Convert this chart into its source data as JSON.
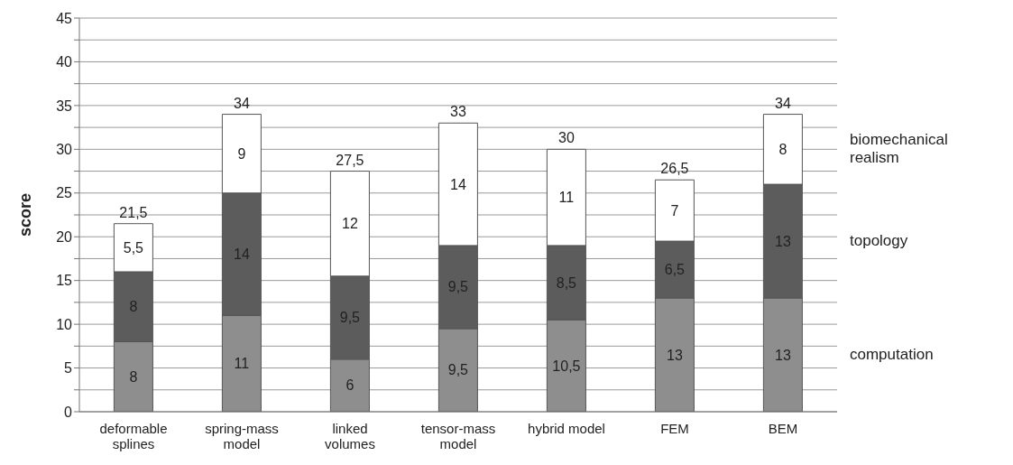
{
  "chart_data": {
    "type": "bar",
    "stacked": true,
    "ylabel": "score",
    "categories": [
      "deformable splines",
      "spring-mass model",
      "linked volumes",
      "tensor-mass model",
      "hybrid model",
      "FEM",
      "BEM"
    ],
    "series": [
      {
        "name": "computation",
        "color": "#8e8e8e",
        "values": [
          8,
          11,
          6,
          9.5,
          10.5,
          13,
          13
        ],
        "value_labels": [
          "8",
          "11",
          "6",
          "9,5",
          "10,5",
          "13",
          "13"
        ]
      },
      {
        "name": "topology",
        "color": "#5c5c5c",
        "values": [
          8,
          14,
          9.5,
          9.5,
          8.5,
          6.5,
          13
        ],
        "value_labels": [
          "8",
          "14",
          "9,5",
          "9,5",
          "8,5",
          "6,5",
          "13"
        ]
      },
      {
        "name": "biomechanical realism",
        "color": "#ffffff",
        "values": [
          5.5,
          9,
          12,
          14,
          11,
          7,
          8
        ],
        "value_labels": [
          "5,5",
          "9",
          "12",
          "14",
          "11",
          "7",
          "8"
        ]
      }
    ],
    "totals": [
      "21,5",
      "34",
      "27,5",
      "33",
      "30",
      "26,5",
      "34"
    ],
    "ylim": [
      0,
      45
    ],
    "yticks": [
      0,
      {
        "value": 2.5,
        "label": null
      },
      5,
      {
        "value": 7.5,
        "label": null
      },
      10,
      {
        "value": 12.5,
        "label": null
      },
      15,
      {
        "value": 17.5,
        "label": null
      },
      20,
      {
        "value": 22.5,
        "label": null
      },
      25,
      {
        "value": 27.5,
        "label": null
      },
      30,
      {
        "value": 32.5,
        "label": null
      },
      35,
      {
        "value": 37.5,
        "label": null
      },
      40,
      {
        "value": 42.5,
        "label": null
      },
      45
    ],
    "grid": "y",
    "legend": "right"
  }
}
